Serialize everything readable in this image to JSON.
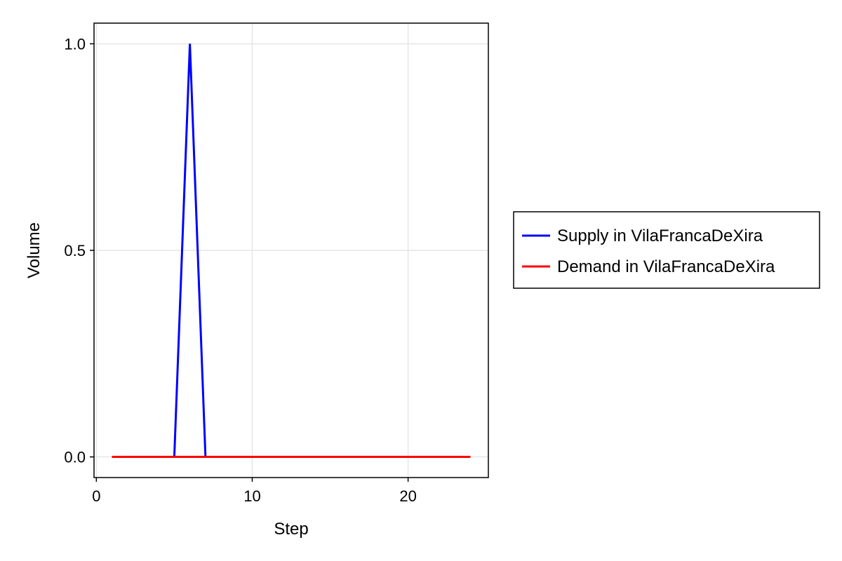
{
  "chart_data": {
    "type": "line",
    "title": "",
    "xlabel": "Step",
    "ylabel": "Volume",
    "xlim": [
      -0.15,
      25.15
    ],
    "ylim": [
      -0.05,
      1.05
    ],
    "x_ticks": [
      0,
      10,
      20
    ],
    "x_tick_labels": [
      "0",
      "10",
      "20"
    ],
    "y_ticks": [
      0.0,
      0.5,
      1.0
    ],
    "y_tick_labels": [
      "0.0",
      "0.5",
      "1.0"
    ],
    "grid": true,
    "legend_position": "right",
    "series": [
      {
        "name": "Supply in VilaFrancaDeXira",
        "color": "#0000ff",
        "x": [
          1,
          2,
          3,
          4,
          5,
          6,
          7,
          8,
          9,
          10,
          11,
          12,
          13,
          14,
          15,
          16,
          17,
          18,
          19,
          20,
          21,
          22,
          23,
          24
        ],
        "y": [
          0,
          0,
          0,
          0,
          0,
          1,
          0,
          0,
          0,
          0,
          0,
          0,
          0,
          0,
          0,
          0,
          0,
          0,
          0,
          0,
          0,
          0,
          0,
          0
        ]
      },
      {
        "name": "Demand in VilaFrancaDeXira",
        "color": "#ff0000",
        "x": [
          1,
          2,
          3,
          4,
          5,
          6,
          7,
          8,
          9,
          10,
          11,
          12,
          13,
          14,
          15,
          16,
          17,
          18,
          19,
          20,
          21,
          22,
          23,
          24
        ],
        "y": [
          0,
          0,
          0,
          0,
          0,
          0,
          0,
          0,
          0,
          0,
          0,
          0,
          0,
          0,
          0,
          0,
          0,
          0,
          0,
          0,
          0,
          0,
          0,
          0
        ]
      }
    ]
  }
}
